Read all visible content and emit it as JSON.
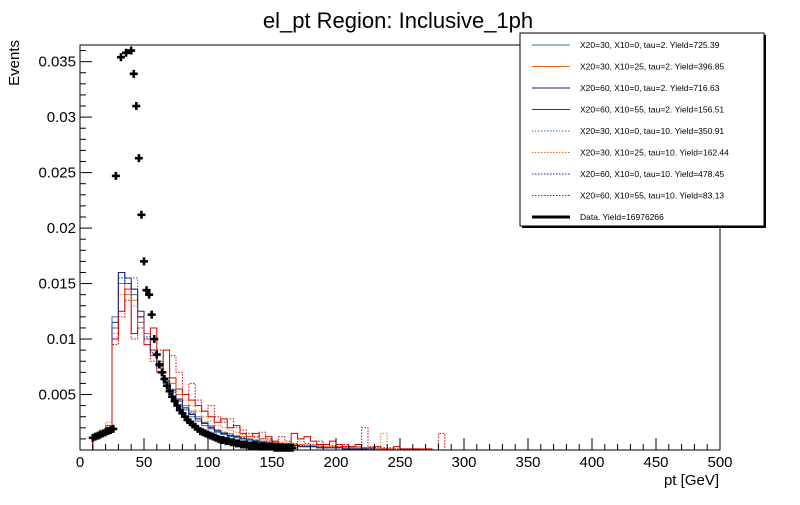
{
  "chart_data": {
    "type": "line",
    "title": "el_pt Region: Inclusive_1ph",
    "xlabel": "pt [GeV]",
    "ylabel": "Events",
    "xlim": [
      0,
      500
    ],
    "ylim": [
      0,
      0.0365
    ],
    "x_ticks": [
      0,
      50,
      100,
      150,
      200,
      250,
      300,
      350,
      400,
      450,
      500
    ],
    "y_ticks": [
      0.005,
      0.01,
      0.015,
      0.02,
      0.025,
      0.03,
      0.035
    ],
    "y_tick_labels": [
      "0.005",
      "0.01",
      "0.015",
      "0.02",
      "0.025",
      "0.03",
      "0.035"
    ],
    "legend_position": "top-right",
    "bin_edges": [
      0,
      5,
      10,
      15,
      20,
      25,
      30,
      35,
      40,
      45,
      50,
      55,
      60,
      65,
      70,
      75,
      80,
      85,
      90,
      95,
      100,
      105,
      110,
      115,
      120,
      125,
      130,
      135,
      140,
      145,
      150,
      155,
      160,
      165,
      170,
      175,
      180,
      185,
      190,
      195,
      200,
      205,
      210,
      215,
      220,
      225,
      230,
      235,
      240,
      245,
      250,
      255,
      260,
      265,
      270,
      275,
      280,
      285,
      290,
      295,
      300,
      305,
      310,
      315,
      320,
      325,
      330,
      335,
      340,
      345,
      350,
      355,
      360,
      365,
      370,
      375,
      380,
      385,
      390,
      395,
      400,
      405,
      410,
      415,
      420,
      425,
      430,
      435,
      440,
      445,
      450,
      455,
      460,
      465,
      470,
      475,
      480,
      485,
      490,
      495,
      500
    ],
    "series": [
      {
        "name": "X20=30, X10=0, tau=2. Yield=725.39",
        "color": "#2b6fb5",
        "style": "solid",
        "values": [
          0,
          0,
          0.001,
          0.0015,
          0.002,
          0.012,
          0.016,
          0.015,
          0.014,
          0.012,
          0.01,
          0.009,
          0.0075,
          0.006,
          0.0052,
          0.0044,
          0.0036,
          0.003,
          0.0026,
          0.0022,
          0.0019,
          0.0016,
          0.0014,
          0.0012,
          0.0011,
          0.001,
          0.0009,
          0.0008,
          0.0007,
          0.0006,
          0.0005,
          0.0005,
          0.0004,
          0.0004,
          0.0003,
          0.0003,
          0.0003,
          0.0002,
          0.0002,
          0.0002,
          0.0002,
          0.0001,
          0.0001,
          0.0001,
          0.0001,
          0.0001,
          0,
          0,
          0,
          0,
          0,
          0,
          0,
          0,
          0,
          0,
          0,
          0,
          0,
          0,
          0,
          0,
          0,
          0,
          0,
          0,
          0,
          0,
          0,
          0,
          0,
          0,
          0,
          0,
          0,
          0,
          0,
          0,
          0,
          0,
          0,
          0,
          0,
          0,
          0,
          0,
          0,
          0,
          0,
          0,
          0,
          0,
          0,
          0,
          0,
          0,
          0,
          0,
          0,
          0
        ]
      },
      {
        "name": "X20=30, X10=25, tau=2. Yield=396.85",
        "color": "#e8701a",
        "style": "solid",
        "values": [
          0,
          0,
          0.0012,
          0.0017,
          0.0022,
          0.011,
          0.015,
          0.014,
          0.0135,
          0.0115,
          0.0105,
          0.0085,
          0.008,
          0.0065,
          0.006,
          0.005,
          0.004,
          0.0035,
          0.003,
          0.0025,
          0.0022,
          0.0018,
          0.0016,
          0.0015,
          0.0013,
          0.0012,
          0.001,
          0.0009,
          0.0008,
          0.0008,
          0.0007,
          0.0006,
          0.0006,
          0.0005,
          0.0005,
          0.0004,
          0.0004,
          0.0003,
          0.0003,
          0.0003,
          0.0002,
          0.0002,
          0.0002,
          0.0002,
          0.0001,
          0.0001,
          0.0001,
          0,
          0,
          0,
          0,
          0,
          0,
          0,
          0,
          0,
          0,
          0,
          0,
          0,
          0,
          0,
          0,
          0,
          0,
          0,
          0,
          0,
          0,
          0,
          0,
          0,
          0,
          0,
          0,
          0,
          0,
          0,
          0,
          0,
          0,
          0,
          0,
          0,
          0,
          0,
          0,
          0,
          0,
          0,
          0,
          0,
          0,
          0,
          0,
          0,
          0,
          0,
          0,
          0,
          0
        ]
      },
      {
        "name": "X20=60, X10=0, tau=2. Yield=716.63",
        "color": "#1a1a8c",
        "style": "solid",
        "values": [
          0,
          0,
          0.001,
          0.0014,
          0.0018,
          0.0115,
          0.016,
          0.0155,
          0.0145,
          0.0125,
          0.01,
          0.009,
          0.0078,
          0.0062,
          0.0054,
          0.0046,
          0.0038,
          0.0032,
          0.0028,
          0.0024,
          0.002,
          0.0017,
          0.0015,
          0.0013,
          0.0012,
          0.001,
          0.0009,
          0.0008,
          0.0007,
          0.0006,
          0.0006,
          0.0005,
          0.0004,
          0.0004,
          0.0003,
          0.0003,
          0.0003,
          0.0002,
          0.0002,
          0.0002,
          0.0002,
          0.0001,
          0.0001,
          0.0001,
          0.0001,
          0.0001,
          0,
          0,
          0,
          0,
          0,
          0,
          0,
          0,
          0,
          0,
          0,
          0,
          0,
          0,
          0,
          0,
          0,
          0,
          0,
          0,
          0,
          0,
          0,
          0,
          0,
          0,
          0,
          0,
          0,
          0,
          0,
          0,
          0,
          0,
          0,
          0,
          0,
          0,
          0,
          0,
          0,
          0,
          0,
          0,
          0,
          0,
          0,
          0,
          0,
          0,
          0,
          0,
          0,
          0
        ]
      },
      {
        "name": "X20=60, X10=55, tau=2. Yield=156.51",
        "color": "#d10000",
        "style": "solid",
        "values": [
          0,
          0,
          0.001,
          0.0015,
          0.002,
          0.01,
          0.0125,
          0.0145,
          0.0105,
          0.012,
          0.0095,
          0.011,
          0.007,
          0.009,
          0.0065,
          0.0055,
          0.005,
          0.0045,
          0.004,
          0.0035,
          0.003,
          0.0025,
          0.0028,
          0.002,
          0.0022,
          0.0015,
          0.0012,
          0.0015,
          0.001,
          0.0012,
          0.0008,
          0.0006,
          0.0006,
          0.0015,
          0.001,
          0.0012,
          0.0008,
          0.0005,
          0.0005,
          0.0008,
          0.0005,
          0.0003,
          0.0003,
          0.0005,
          0.0002,
          0.0002,
          0.0003,
          0.0001,
          0.0001,
          0.0003,
          0.0001,
          0.0001,
          0.0001,
          0.0001,
          0.0001,
          0,
          0,
          0,
          0,
          0,
          0,
          0,
          0,
          0,
          0,
          0,
          0,
          0,
          0,
          0,
          0,
          0,
          0,
          0,
          0,
          0,
          0,
          0,
          0,
          0,
          0,
          0,
          0,
          0,
          0,
          0,
          0,
          0,
          0,
          0,
          0,
          0,
          0,
          0,
          0,
          0,
          0,
          0,
          0,
          0
        ]
      },
      {
        "name": "X20=30, X10=0, tau=10. Yield=350.91",
        "color": "#2b6fb5",
        "style": "dotted",
        "values": [
          0,
          0,
          0.0011,
          0.0016,
          0.0022,
          0.0115,
          0.015,
          0.015,
          0.0155,
          0.0115,
          0.0105,
          0.0085,
          0.0078,
          0.0062,
          0.0055,
          0.0045,
          0.004,
          0.0034,
          0.003,
          0.0025,
          0.0021,
          0.0018,
          0.0016,
          0.0014,
          0.0012,
          0.0011,
          0.001,
          0.0009,
          0.0008,
          0.0007,
          0.0006,
          0.0005,
          0.0005,
          0.0004,
          0.0004,
          0.0003,
          0.0003,
          0.0003,
          0.0002,
          0.0002,
          0.0002,
          0.0001,
          0.0001,
          0.0001,
          0.0001,
          0.0001,
          0.0001,
          0,
          0,
          0,
          0,
          0,
          0,
          0,
          0,
          0,
          0,
          0,
          0,
          0,
          0,
          0,
          0,
          0,
          0,
          0,
          0,
          0,
          0,
          0,
          0,
          0,
          0,
          0,
          0,
          0,
          0,
          0,
          0,
          0,
          0,
          0,
          0,
          0,
          0,
          0,
          0,
          0,
          0,
          0,
          0,
          0,
          0,
          0,
          0,
          0,
          0,
          0,
          0,
          0,
          0
        ]
      },
      {
        "name": "X20=30, X10=25, tau=10. Yield=162.44",
        "color": "#e8701a",
        "style": "dotted",
        "values": [
          0,
          0,
          0.0012,
          0.0018,
          0.0025,
          0.0105,
          0.014,
          0.0145,
          0.013,
          0.011,
          0.01,
          0.009,
          0.008,
          0.007,
          0.006,
          0.005,
          0.0045,
          0.004,
          0.0035,
          0.003,
          0.0026,
          0.0022,
          0.002,
          0.0018,
          0.0016,
          0.0014,
          0.0012,
          0.0011,
          0.001,
          0.0009,
          0.0008,
          0.0007,
          0.0006,
          0.0006,
          0.0005,
          0.0005,
          0.0004,
          0.0004,
          0.0003,
          0.0003,
          0.0003,
          0.0002,
          0.0002,
          0.0002,
          0.0002,
          0.0001,
          0.0001,
          0.0015,
          0.0001,
          0.0001,
          0.0001,
          0.0001,
          0.0001,
          0.0001,
          0,
          0,
          0,
          0,
          0,
          0,
          0,
          0,
          0,
          0,
          0,
          0,
          0,
          0,
          0,
          0,
          0,
          0,
          0,
          0,
          0,
          0,
          0,
          0,
          0,
          0,
          0,
          0,
          0,
          0,
          0,
          0,
          0,
          0,
          0,
          0,
          0,
          0,
          0,
          0,
          0,
          0,
          0,
          0,
          0,
          0
        ]
      },
      {
        "name": "X20=60, X10=0, tau=10. Yield=478.45",
        "color": "#1a1a8c",
        "style": "dotted",
        "values": [
          0,
          0,
          0.001,
          0.0015,
          0.002,
          0.011,
          0.0155,
          0.015,
          0.0145,
          0.012,
          0.0102,
          0.0088,
          0.0075,
          0.0062,
          0.0054,
          0.0046,
          0.0038,
          0.0033,
          0.0028,
          0.0024,
          0.0021,
          0.0018,
          0.0015,
          0.0013,
          0.0012,
          0.0011,
          0.0009,
          0.0008,
          0.0007,
          0.0007,
          0.0006,
          0.0005,
          0.0005,
          0.0004,
          0.0004,
          0.0003,
          0.0003,
          0.0002,
          0.0002,
          0.0002,
          0.0002,
          0.0001,
          0.0001,
          0.0001,
          0.0001,
          0.0001,
          0,
          0,
          0,
          0,
          0,
          0,
          0,
          0,
          0,
          0,
          0,
          0,
          0,
          0,
          0,
          0,
          0,
          0,
          0,
          0,
          0,
          0,
          0,
          0,
          0,
          0,
          0,
          0,
          0,
          0,
          0,
          0,
          0,
          0,
          0,
          0,
          0,
          0,
          0,
          0,
          0,
          0,
          0,
          0,
          0,
          0,
          0,
          0,
          0,
          0,
          0,
          0,
          0,
          0
        ]
      },
      {
        "name": "X20=60, X10=55, tau=10. Yield=83.13",
        "color": "#d10000",
        "style": "dotted",
        "values": [
          0,
          0,
          0.001,
          0.0015,
          0.0022,
          0.0095,
          0.012,
          0.0135,
          0.01,
          0.011,
          0.0095,
          0.008,
          0.009,
          0.006,
          0.0085,
          0.007,
          0.005,
          0.006,
          0.0045,
          0.0035,
          0.004,
          0.003,
          0.0025,
          0.0028,
          0.002,
          0.0018,
          0.0015,
          0.0012,
          0.0016,
          0.001,
          0.0008,
          0.0012,
          0.0008,
          0.0006,
          0.001,
          0.0006,
          0.0005,
          0.0008,
          0.0005,
          0.0004,
          0.0003,
          0.0005,
          0.0003,
          0.0003,
          0.002,
          0.0003,
          0.0002,
          0.0002,
          0.0002,
          0.0001,
          0.0001,
          0.0001,
          0.0001,
          0,
          0,
          0,
          0.0015,
          0,
          0,
          0,
          0,
          0,
          0,
          0,
          0,
          0,
          0,
          0,
          0,
          0,
          0,
          0,
          0,
          0,
          0,
          0,
          0,
          0,
          0,
          0,
          0,
          0,
          0,
          0,
          0,
          0,
          0,
          0,
          0,
          0,
          0,
          0,
          0,
          0,
          0,
          0,
          0,
          0,
          0,
          0
        ]
      },
      {
        "name": "Data. Yield=16976266",
        "color": "#000000",
        "style": "markers",
        "x": [
          10,
          12,
          14,
          16,
          18,
          20,
          22,
          24,
          26,
          28,
          32,
          36,
          40,
          42,
          44,
          46,
          48,
          50,
          52,
          54,
          56,
          58,
          60,
          62,
          64,
          66,
          68,
          70,
          72,
          74,
          76,
          78,
          80,
          82,
          84,
          86,
          88,
          90,
          92,
          94,
          96,
          98,
          100,
          102,
          104,
          106,
          108,
          110,
          112,
          114,
          116,
          118,
          120,
          122,
          124,
          126,
          128,
          130,
          132,
          134,
          136,
          138,
          140,
          142,
          144,
          146,
          148,
          150,
          152,
          154,
          156,
          158,
          160,
          162,
          164,
          166
        ],
        "y": [
          0.0011,
          0.0012,
          0.0013,
          0.0014,
          0.0015,
          0.0016,
          0.0017,
          0.0018,
          0.0019,
          0.0247,
          0.0354,
          0.0358,
          0.036,
          0.0339,
          0.031,
          0.0263,
          0.0212,
          0.017,
          0.0144,
          0.014,
          0.0122,
          0.01,
          0.0086,
          0.0077,
          0.007,
          0.0064,
          0.0058,
          0.0053,
          0.0048,
          0.0044,
          0.004,
          0.0036,
          0.0033,
          0.003,
          0.0027,
          0.0025,
          0.0023,
          0.0021,
          0.0019,
          0.0017,
          0.0016,
          0.0015,
          0.0014,
          0.0013,
          0.0012,
          0.0011,
          0.001,
          0.0009,
          0.0009,
          0.0008,
          0.0008,
          0.0007,
          0.0007,
          0.0006,
          0.0006,
          0.0005,
          0.0005,
          0.0005,
          0.0004,
          0.0004,
          0.0004,
          0.0004,
          0.0003,
          0.0003,
          0.0003,
          0.0003,
          0.0003,
          0.0003,
          0.0002,
          0.0002,
          0.0002,
          0.0002,
          0.0002,
          0.0002,
          0.0002,
          0.0002
        ]
      }
    ]
  }
}
